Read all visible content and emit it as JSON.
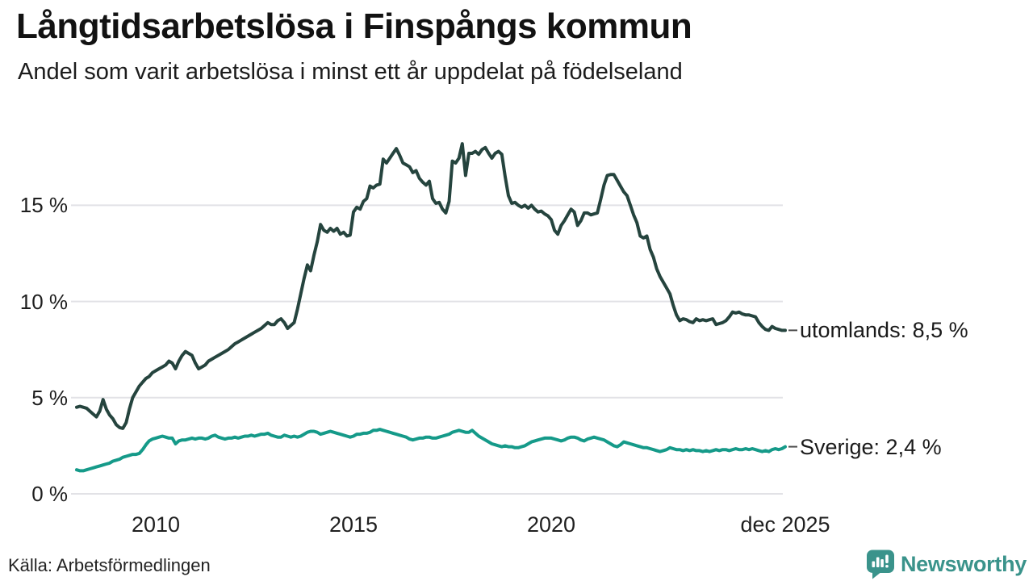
{
  "header": {
    "title": "Långtidsarbetslösa i Finspångs kommun",
    "subtitle": "Andel som varit arbetslösa i minst ett år uppdelat på födelseland"
  },
  "footer": {
    "source": "Källa: Arbetsförmedlingen",
    "brand": "Newsworthy"
  },
  "colors": {
    "series_utomlands": "#25443e",
    "series_sverige": "#159a89",
    "gridline": "#e2e2e6",
    "connector_dash": "#4d4d4d",
    "logo_teal": "#3a938b",
    "text": "#1a1a1a"
  },
  "chart_data": {
    "type": "line",
    "title": "Långtidsarbetslösa i Finspångs kommun",
    "subtitle": "Andel som varit arbetslösa i minst ett år uppdelat på födelseland",
    "xlabel": "",
    "ylabel": "",
    "frequency": "monthly",
    "x_start": "2008-01",
    "x_end": "2025-12",
    "x_start_year": 2008.0,
    "x_end_year": 2025.917,
    "ylim": [
      0,
      19
    ],
    "grid": "horizontal",
    "legend_position": "right-end-labels",
    "y_ticks": [
      {
        "value": 0,
        "label": "0 %"
      },
      {
        "value": 5,
        "label": "5 %"
      },
      {
        "value": 10,
        "label": "10 %"
      },
      {
        "value": 15,
        "label": "15 %"
      }
    ],
    "x_ticks": [
      {
        "t": 2010.0,
        "label": "2010"
      },
      {
        "t": 2015.0,
        "label": "2015"
      },
      {
        "t": 2020.0,
        "label": "2020"
      },
      {
        "t": 2025.917,
        "label": "dec 2025"
      }
    ],
    "series": [
      {
        "name": "utomlands",
        "label": "utomlands: 8,5 %",
        "last_value_label": "8,5 %",
        "color": "#25443e",
        "values": [
          4.5,
          4.55,
          4.5,
          4.45,
          4.3,
          4.15,
          4.0,
          4.3,
          4.9,
          4.4,
          4.1,
          3.9,
          3.6,
          3.45,
          3.4,
          3.7,
          4.4,
          5.0,
          5.3,
          5.6,
          5.8,
          6.0,
          6.1,
          6.3,
          6.4,
          6.5,
          6.6,
          6.7,
          6.9,
          6.8,
          6.5,
          6.9,
          7.2,
          7.4,
          7.3,
          7.2,
          6.8,
          6.5,
          6.6,
          6.7,
          6.9,
          7.0,
          7.1,
          7.2,
          7.3,
          7.4,
          7.5,
          7.65,
          7.8,
          7.9,
          8.0,
          8.1,
          8.2,
          8.3,
          8.4,
          8.5,
          8.6,
          8.75,
          8.9,
          8.8,
          8.8,
          9.0,
          9.1,
          8.9,
          8.6,
          8.75,
          8.9,
          9.6,
          10.4,
          11.2,
          11.9,
          11.6,
          12.4,
          13.1,
          14.0,
          13.7,
          13.6,
          13.8,
          13.65,
          13.8,
          13.5,
          13.6,
          13.4,
          13.45,
          14.65,
          14.9,
          14.8,
          15.2,
          15.35,
          16.0,
          15.9,
          16.05,
          16.1,
          17.4,
          17.2,
          17.45,
          17.7,
          17.95,
          17.6,
          17.2,
          17.1,
          17.0,
          16.7,
          16.8,
          16.4,
          16.2,
          16.05,
          16.25,
          15.35,
          15.1,
          15.15,
          14.8,
          14.6,
          15.2,
          17.3,
          17.2,
          17.45,
          18.2,
          16.55,
          17.7,
          17.7,
          17.8,
          17.65,
          17.9,
          18.0,
          17.7,
          17.45,
          17.7,
          17.8,
          17.65,
          16.5,
          15.5,
          15.1,
          15.15,
          15.0,
          14.9,
          15.0,
          14.85,
          15.0,
          14.8,
          14.65,
          14.7,
          14.55,
          14.45,
          14.25,
          13.7,
          13.5,
          13.95,
          14.2,
          14.5,
          14.8,
          14.65,
          13.95,
          14.2,
          14.6,
          14.6,
          14.5,
          14.55,
          14.6,
          15.3,
          16.05,
          16.55,
          16.6,
          16.6,
          16.3,
          16.0,
          15.7,
          15.5,
          15.0,
          14.5,
          14.1,
          13.4,
          13.3,
          13.4,
          12.7,
          12.3,
          11.7,
          11.3,
          11.0,
          10.7,
          10.4,
          9.8,
          9.3,
          9.0,
          9.1,
          9.05,
          8.95,
          8.9,
          9.1,
          9.0,
          9.05,
          9.0,
          9.05,
          9.1,
          8.8,
          8.85,
          8.9,
          9.0,
          9.2,
          9.45,
          9.4,
          9.45,
          9.35,
          9.3,
          9.3,
          9.25,
          9.2,
          8.9,
          8.7,
          8.55,
          8.5,
          8.7,
          8.6,
          8.55,
          8.5,
          8.5
        ]
      },
      {
        "name": "Sverige",
        "label": "Sverige: 2,4 %",
        "last_value_label": "2,4 %",
        "color": "#159a89",
        "values": [
          1.25,
          1.2,
          1.2,
          1.25,
          1.3,
          1.35,
          1.4,
          1.45,
          1.5,
          1.55,
          1.6,
          1.7,
          1.75,
          1.8,
          1.9,
          1.95,
          2.0,
          2.05,
          2.05,
          2.1,
          2.3,
          2.55,
          2.75,
          2.85,
          2.9,
          2.95,
          3.0,
          2.95,
          2.9,
          2.9,
          2.6,
          2.75,
          2.8,
          2.8,
          2.85,
          2.9,
          2.85,
          2.9,
          2.9,
          2.85,
          2.9,
          3.0,
          3.05,
          2.95,
          2.9,
          2.85,
          2.9,
          2.9,
          2.95,
          2.9,
          2.95,
          3.0,
          3.0,
          3.05,
          3.0,
          3.05,
          3.1,
          3.1,
          3.15,
          3.05,
          3.0,
          2.95,
          2.95,
          3.05,
          3.0,
          2.95,
          3.0,
          2.95,
          3.0,
          3.1,
          3.2,
          3.25,
          3.25,
          3.2,
          3.1,
          3.15,
          3.2,
          3.25,
          3.2,
          3.15,
          3.1,
          3.05,
          3.0,
          2.95,
          3.0,
          3.1,
          3.1,
          3.15,
          3.15,
          3.2,
          3.3,
          3.3,
          3.35,
          3.3,
          3.25,
          3.2,
          3.15,
          3.1,
          3.05,
          3.0,
          2.95,
          2.85,
          2.8,
          2.85,
          2.9,
          2.9,
          2.95,
          2.95,
          2.9,
          2.9,
          2.95,
          3.0,
          3.05,
          3.1,
          3.2,
          3.25,
          3.3,
          3.25,
          3.2,
          3.2,
          3.3,
          3.15,
          3.0,
          2.9,
          2.8,
          2.7,
          2.6,
          2.55,
          2.5,
          2.45,
          2.5,
          2.45,
          2.45,
          2.4,
          2.4,
          2.45,
          2.5,
          2.6,
          2.7,
          2.75,
          2.8,
          2.85,
          2.9,
          2.9,
          2.9,
          2.85,
          2.8,
          2.75,
          2.8,
          2.9,
          2.95,
          2.95,
          2.9,
          2.8,
          2.75,
          2.85,
          2.9,
          2.95,
          2.9,
          2.85,
          2.8,
          2.7,
          2.6,
          2.5,
          2.45,
          2.55,
          2.7,
          2.65,
          2.6,
          2.55,
          2.5,
          2.45,
          2.4,
          2.4,
          2.35,
          2.3,
          2.25,
          2.2,
          2.25,
          2.3,
          2.4,
          2.35,
          2.3,
          2.3,
          2.25,
          2.3,
          2.25,
          2.3,
          2.25,
          2.25,
          2.2,
          2.25,
          2.2,
          2.25,
          2.3,
          2.25,
          2.3,
          2.3,
          2.25,
          2.3,
          2.35,
          2.3,
          2.3,
          2.35,
          2.3,
          2.35,
          2.3,
          2.25,
          2.2,
          2.25,
          2.2,
          2.3,
          2.35,
          2.3,
          2.35,
          2.45
        ]
      }
    ]
  }
}
